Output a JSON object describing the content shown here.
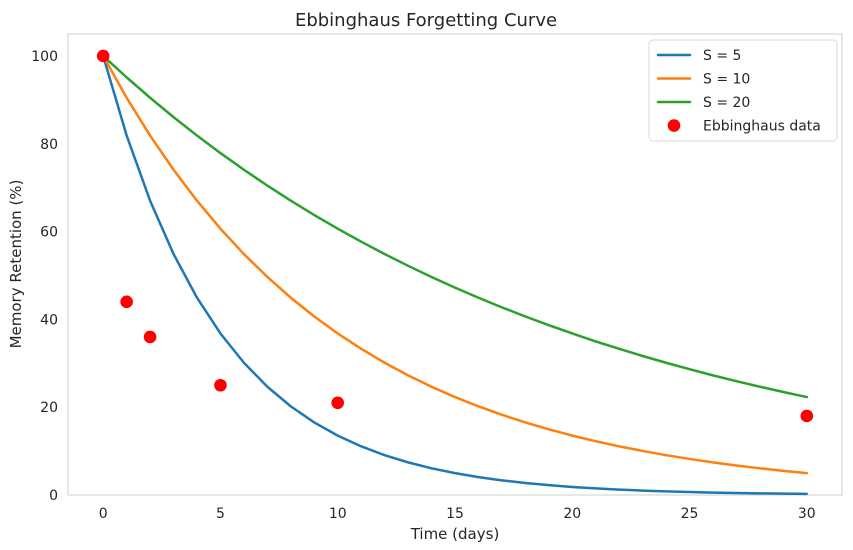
{
  "chart_data": {
    "type": "line",
    "title": "Ebbinghaus Forgetting Curve",
    "xlabel": "Time (days)",
    "ylabel": "Memory Retention (%)",
    "xlim": [
      -1.5,
      31.5
    ],
    "ylim": [
      0,
      105
    ],
    "xticks": [
      0,
      5,
      10,
      15,
      20,
      25,
      30
    ],
    "yticks": [
      0,
      20,
      40,
      60,
      80,
      100
    ],
    "xtick_labels": [
      "0",
      "5",
      "10",
      "15",
      "20",
      "25",
      "30"
    ],
    "ytick_labels": [
      "0",
      "20",
      "40",
      "60",
      "80",
      "100"
    ],
    "grid": true,
    "legend_position": "top-right",
    "series": [
      {
        "name": "S = 5",
        "kind": "line",
        "color": "#1f77b4",
        "x": [
          0,
          1,
          2,
          3,
          4,
          5,
          6,
          7,
          8,
          9,
          10,
          11,
          12,
          13,
          14,
          15,
          16,
          17,
          18,
          19,
          20,
          21,
          22,
          23,
          24,
          25,
          26,
          27,
          28,
          29,
          30
        ],
        "y": [
          100.0,
          81.87,
          67.03,
          54.88,
          44.93,
          36.79,
          30.12,
          24.66,
          20.19,
          16.53,
          13.53,
          11.08,
          9.07,
          7.43,
          6.08,
          4.98,
          4.08,
          3.34,
          2.73,
          2.24,
          1.83,
          1.5,
          1.23,
          1.01,
          0.82,
          0.67,
          0.55,
          0.45,
          0.37,
          0.3,
          0.25
        ]
      },
      {
        "name": "S = 10",
        "kind": "line",
        "color": "#ff7f0e",
        "x": [
          0,
          1,
          2,
          3,
          4,
          5,
          6,
          7,
          8,
          9,
          10,
          11,
          12,
          13,
          14,
          15,
          16,
          17,
          18,
          19,
          20,
          21,
          22,
          23,
          24,
          25,
          26,
          27,
          28,
          29,
          30
        ],
        "y": [
          100.0,
          90.48,
          81.87,
          74.08,
          67.03,
          60.65,
          54.88,
          49.66,
          44.93,
          40.66,
          36.79,
          33.29,
          30.12,
          27.25,
          24.66,
          22.31,
          20.19,
          18.27,
          16.53,
          14.96,
          13.53,
          12.25,
          11.08,
          10.03,
          9.07,
          8.21,
          7.43,
          6.72,
          6.08,
          5.5,
          4.98
        ]
      },
      {
        "name": "S = 20",
        "kind": "line",
        "color": "#2ca02c",
        "x": [
          0,
          1,
          2,
          3,
          4,
          5,
          6,
          7,
          8,
          9,
          10,
          11,
          12,
          13,
          14,
          15,
          16,
          17,
          18,
          19,
          20,
          21,
          22,
          23,
          24,
          25,
          26,
          27,
          28,
          29,
          30
        ],
        "y": [
          100.0,
          95.12,
          90.48,
          86.07,
          81.87,
          77.88,
          74.08,
          70.47,
          67.03,
          63.76,
          60.65,
          57.69,
          54.88,
          52.2,
          49.66,
          47.24,
          44.93,
          42.74,
          40.66,
          38.67,
          36.79,
          34.99,
          33.29,
          31.66,
          30.12,
          28.65,
          27.25,
          25.92,
          24.66,
          23.46,
          22.31
        ]
      },
      {
        "name": "Ebbinghaus data",
        "kind": "scatter",
        "color": "#ff0000",
        "x": [
          0,
          1,
          2,
          5,
          10,
          30
        ],
        "y": [
          100,
          44,
          36,
          25,
          21,
          18
        ]
      }
    ]
  }
}
